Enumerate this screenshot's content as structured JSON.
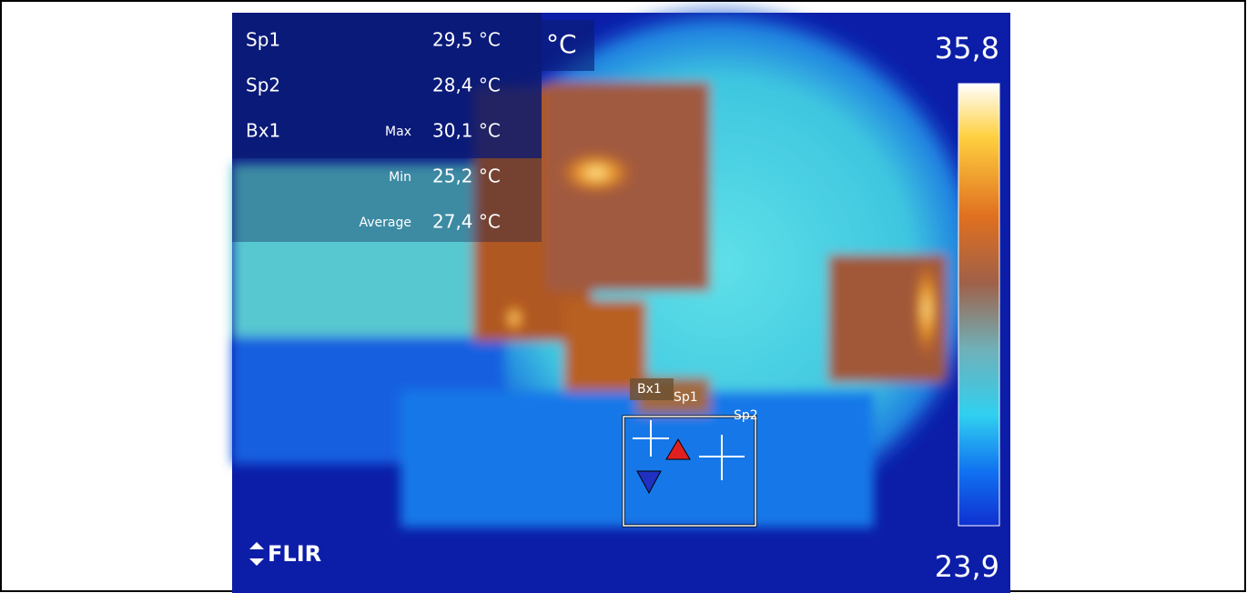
{
  "measurements": [
    {
      "label": "Sp1",
      "value": "29,5 °C"
    },
    {
      "label": "Sp2",
      "value": "28,4 °C"
    },
    {
      "label": "Bx1",
      "sublabel": "Max",
      "value": "30,1 °C"
    },
    {
      "sublabel": "Min",
      "value": "25,2 °C"
    },
    {
      "sublabel": "Average",
      "value": "27,4 °C"
    }
  ],
  "unit": "°C",
  "scale": {
    "max": "35,8",
    "min": "23,9"
  },
  "overlay_labels": {
    "box": "Bx1",
    "spot1": "Sp1",
    "spot2": "Sp2"
  },
  "logo": "FLIR"
}
